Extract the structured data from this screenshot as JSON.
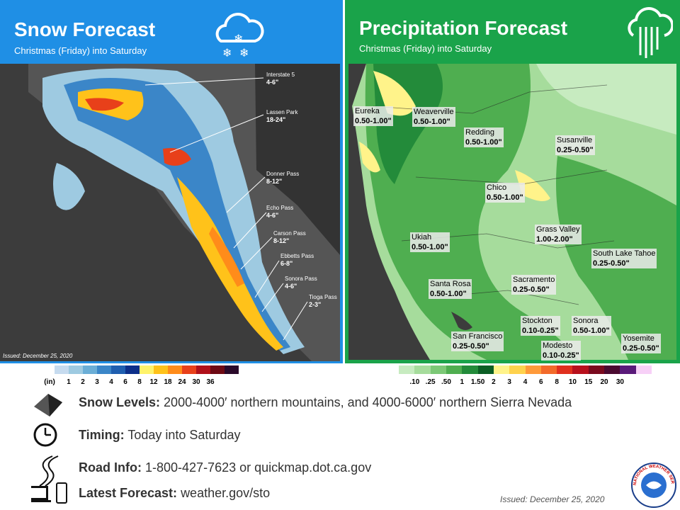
{
  "snow": {
    "title": "Snow Forecast",
    "subtitle": "Christmas (Friday) into Saturday",
    "issued": "Issued: December 25, 2020",
    "labels": [
      {
        "name": "Interstate 5",
        "amount": "4-6\""
      },
      {
        "name": "Lassen Park",
        "amount": "18-24\""
      },
      {
        "name": "Donner Pass",
        "amount": "8-12\""
      },
      {
        "name": "Echo Pass",
        "amount": "4-6\""
      },
      {
        "name": "Carson Pass",
        "amount": "8-12\""
      },
      {
        "name": "Ebbetts Pass",
        "amount": "6-8\""
      },
      {
        "name": "Sonora Pass",
        "amount": "4-6\""
      },
      {
        "name": "Tioga Pass",
        "amount": "2-3\""
      }
    ],
    "legend_unit": "(in)",
    "legend_ticks": [
      "1",
      "2",
      "3",
      "4",
      "6",
      "8",
      "12",
      "18",
      "24",
      "30",
      "36"
    ],
    "legend_colors": [
      "#c6dbef",
      "#9ecae1",
      "#6baed6",
      "#3b86c8",
      "#1f5fb0",
      "#0c2f8a",
      "#fff36b",
      "#ffc21a",
      "#ff8c1a",
      "#e8401a",
      "#b0101a",
      "#6e0a14",
      "#2a0a2a"
    ]
  },
  "precip": {
    "title": "Precipitation Forecast",
    "subtitle": "Christmas (Friday) into Saturday",
    "labels": [
      {
        "name": "Eureka",
        "amount": "0.50-1.00\""
      },
      {
        "name": "Weaverville",
        "amount": "0.50-1.00\""
      },
      {
        "name": "Redding",
        "amount": "0.50-1.00\""
      },
      {
        "name": "Susanville",
        "amount": "0.25-0.50\""
      },
      {
        "name": "Chico",
        "amount": "0.50-1.00\""
      },
      {
        "name": "Grass Valley",
        "amount": "1.00-2.00\""
      },
      {
        "name": "South Lake Tahoe",
        "amount": "0.25-0.50\""
      },
      {
        "name": "Ukiah",
        "amount": "0.50-1.00\""
      },
      {
        "name": "Santa Rosa",
        "amount": "0.50-1.00\""
      },
      {
        "name": "Sacramento",
        "amount": "0.25-0.50\""
      },
      {
        "name": "Stockton",
        "amount": "0.10-0.25\""
      },
      {
        "name": "Sonora",
        "amount": "0.50-1.00\""
      },
      {
        "name": "San Francisco",
        "amount": "0.25-0.50\""
      },
      {
        "name": "Modesto",
        "amount": "0.10-0.25\""
      },
      {
        "name": "Yosemite",
        "amount": "0.25-0.50\""
      }
    ],
    "legend_ticks": [
      ".10",
      ".25",
      ".50",
      "1",
      "1.50",
      "2",
      "3",
      "4",
      "6",
      "8",
      "10",
      "15",
      "20",
      "30"
    ],
    "legend_colors": [
      "#c7ebc0",
      "#a6dc9c",
      "#7cc876",
      "#4fae50",
      "#238b3a",
      "#0b5e24",
      "#fff38a",
      "#ffd24d",
      "#ff9a3a",
      "#f26a2a",
      "#e0301e",
      "#b8101c",
      "#7a0a1e",
      "#4a0a30",
      "#5a1a7a",
      "#f7d0f7"
    ]
  },
  "info": [
    {
      "label": "Snow Levels:",
      "text": "2000-4000′  northern mountains, and 4000-6000′  northern Sierra Nevada"
    },
    {
      "label": "Timing:",
      "text": "Today into Saturday"
    },
    {
      "label": "Road Info:",
      "text": "1-800-427-7623  or quickmap.dot.ca.gov"
    },
    {
      "label": "Latest Forecast:",
      "text": "weather.gov/sto"
    }
  ],
  "issued": "Issued: December 25, 2020",
  "logo_text": "NATIONAL WEATHER SERVICE"
}
